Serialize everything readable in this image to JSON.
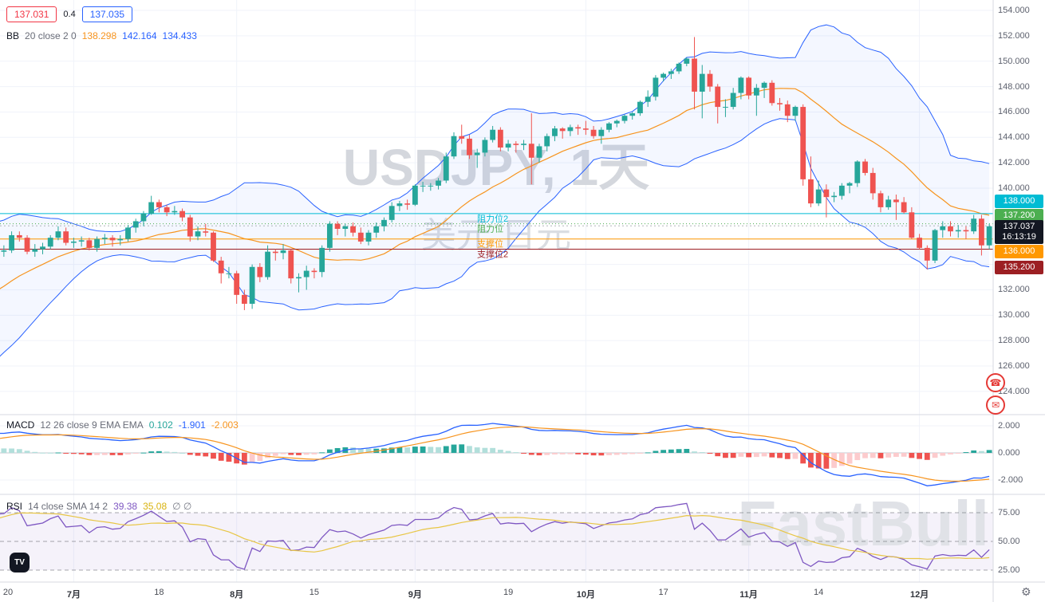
{
  "watermark": {
    "title": "USDJPY, 1天",
    "subtitle": "美元 日元",
    "brand": "FastBull"
  },
  "quote": {
    "bid": "137.031",
    "spread": "0.4",
    "ask": "137.035"
  },
  "legends": {
    "bb": {
      "name": "BB",
      "params": "20 close 2 0",
      "values": [
        {
          "text": "138.298",
          "color": "#f7941e"
        },
        {
          "text": "142.164",
          "color": "#2962ff"
        },
        {
          "text": "134.433",
          "color": "#2962ff"
        }
      ]
    },
    "macd": {
      "name": "MACD",
      "params": "12 26 close 9 EMA EMA",
      "values": [
        {
          "text": "0.102",
          "color": "#26a69a"
        },
        {
          "text": "-1.901",
          "color": "#2962ff"
        },
        {
          "text": "-2.003",
          "color": "#f7941e"
        }
      ]
    },
    "rsi": {
      "name": "RSI",
      "params": "14 close SMA 14 2",
      "values": [
        {
          "text": "39.38",
          "color": "#7e57c2"
        },
        {
          "text": "35.08",
          "color": "#d9b310"
        },
        {
          "text": "∅ ∅",
          "color": "#787b86"
        }
      ]
    }
  },
  "price_axis": {
    "labels": [
      {
        "text": "154.000",
        "price": 154
      },
      {
        "text": "152.000",
        "price": 152
      },
      {
        "text": "150.000",
        "price": 150
      },
      {
        "text": "148.000",
        "price": 148
      },
      {
        "text": "146.000",
        "price": 146
      },
      {
        "text": "144.000",
        "price": 144
      },
      {
        "text": "142.000",
        "price": 142
      },
      {
        "text": "140.000",
        "price": 140
      },
      {
        "text": "132.000",
        "price": 132
      },
      {
        "text": "130.000",
        "price": 130
      },
      {
        "text": "128.000",
        "price": 128
      },
      {
        "text": "126.000",
        "price": 126
      },
      {
        "text": "124.000",
        "price": 124
      }
    ],
    "badges": [
      {
        "name": "resistance2-badge",
        "text": "138.000",
        "price": 138.0,
        "bg": "#00bcd4"
      },
      {
        "name": "resistance-badge",
        "text": "137.200",
        "price": 137.2,
        "bg": "#4caf50"
      },
      {
        "name": "current-price-badge",
        "text": "137.037",
        "price": 137.037,
        "time": "16:13:19",
        "bg": "#131722"
      },
      {
        "name": "support-badge",
        "text": "136.000",
        "price": 136.0,
        "bg": "#ff9800"
      },
      {
        "name": "support2-badge",
        "text": "135.200",
        "price": 135.2,
        "bg": "#9c1f23"
      }
    ],
    "macd_labels": [
      {
        "text": "2.000",
        "v": 2
      },
      {
        "text": "0.000",
        "v": 0
      },
      {
        "text": "-2.000",
        "v": -2
      }
    ],
    "rsi_labels": [
      {
        "text": "75.00",
        "v": 75
      },
      {
        "text": "50.00",
        "v": 50
      },
      {
        "text": "25.00",
        "v": 25
      }
    ]
  },
  "levels": [
    {
      "label": "阻力位2",
      "price": 138.0,
      "color": "#00bcd4",
      "style": "solid"
    },
    {
      "label": "阻力位",
      "price": 137.2,
      "color": "#4caf50",
      "style": "dotted"
    },
    {
      "label": "支撑位",
      "price": 136.0,
      "color": "#ff9800",
      "style": "solid"
    },
    {
      "label": "支撑位2",
      "price": 135.2,
      "color": "#9c1f23",
      "style": "solid"
    }
  ],
  "time_axis": [
    {
      "label": "20",
      "i": 35
    },
    {
      "label": "7月",
      "i": 44,
      "month": true
    },
    {
      "label": "18",
      "i": 55
    },
    {
      "label": "8月",
      "i": 65,
      "month": true
    },
    {
      "label": "15",
      "i": 75
    },
    {
      "label": "9月",
      "i": 88,
      "month": true
    },
    {
      "label": "19",
      "i": 100
    },
    {
      "label": "10月",
      "i": 110,
      "month": true
    },
    {
      "label": "17",
      "i": 120
    },
    {
      "label": "11月",
      "i": 131,
      "month": true
    },
    {
      "label": "14",
      "i": 140
    },
    {
      "label": "12月",
      "i": 153,
      "month": true
    }
  ],
  "icons": {
    "tv_logo": "TV",
    "settings": "⚙",
    "fab_top": "☎",
    "fab_bottom": "✉"
  },
  "colors": {
    "up": "#26a69a",
    "down": "#ef5350",
    "bb": "#2962ff",
    "bb_basis": "#f7941e",
    "bb_fill": "rgba(41,98,255,0.05)",
    "macd": "#2962ff",
    "signal": "#f7941e",
    "hist_up": "#26a69a",
    "hist_up_fade": "#b2dfdb",
    "hist_down": "#ef5350",
    "hist_down_fade": "#fccbcd",
    "rsi": "#7e57c2",
    "rsi_sma": "#e8c645",
    "grid": "#f0f3fa",
    "band_fill": "rgba(126,87,194,0.08)",
    "axis_text": "#5d616e",
    "separator": "#d7dae0"
  },
  "chart_data": {
    "type": "candlestick",
    "symbol": "USDJPY",
    "interval": "1天",
    "title": "USDJPY, 1天 美元 日元",
    "visible_start": 35,
    "price_axis_range": [
      122.2,
      154.8
    ],
    "indicators": {
      "bollinger": {
        "length": 20,
        "mult": 2
      },
      "macd": {
        "fast": 12,
        "slow": 26,
        "signal": 9
      },
      "rsi": {
        "length": 14,
        "sma": 14
      },
      "macd_axis_range": [
        -2.9,
        2.8
      ],
      "rsi_axis_lines": [
        75,
        50,
        25
      ]
    },
    "candles": [
      [
        131.2,
        131.8,
        131.0,
        131.5
      ],
      [
        131.5,
        132.1,
        131.2,
        131.8
      ],
      [
        131.8,
        132.0,
        131.1,
        131.4
      ],
      [
        131.4,
        131.6,
        130.7,
        131.0
      ],
      [
        131.0,
        131.2,
        130.3,
        130.6
      ],
      [
        130.6,
        130.9,
        130.0,
        130.3
      ],
      [
        130.3,
        130.6,
        129.7,
        130.0
      ],
      [
        130.0,
        130.3,
        129.4,
        129.7
      ],
      [
        129.7,
        130.0,
        129.1,
        129.4
      ],
      [
        129.4,
        129.7,
        128.8,
        129.1
      ],
      [
        129.1,
        129.4,
        128.5,
        128.8
      ],
      [
        128.8,
        129.1,
        128.2,
        128.5
      ],
      [
        128.5,
        128.8,
        128.0,
        128.3
      ],
      [
        128.3,
        128.6,
        127.7,
        128.0
      ],
      [
        128.0,
        128.3,
        127.5,
        127.8
      ],
      [
        127.8,
        128.1,
        127.3,
        127.6
      ],
      [
        127.6,
        128.2,
        127.4,
        127.9
      ],
      [
        127.9,
        128.6,
        127.7,
        128.3
      ],
      [
        128.3,
        129.0,
        128.1,
        128.7
      ],
      [
        128.7,
        129.4,
        128.5,
        129.1
      ],
      [
        129.1,
        129.9,
        128.9,
        129.6
      ],
      [
        129.6,
        130.4,
        129.4,
        130.1
      ],
      [
        130.1,
        130.9,
        129.9,
        130.6
      ],
      [
        130.6,
        131.4,
        130.4,
        131.1
      ],
      [
        131.1,
        132.0,
        130.9,
        131.7
      ],
      [
        131.7,
        132.6,
        131.5,
        132.3
      ],
      [
        132.3,
        133.2,
        132.1,
        132.9
      ],
      [
        132.9,
        133.8,
        132.7,
        133.5
      ],
      [
        133.5,
        134.4,
        133.3,
        134.1
      ],
      [
        134.1,
        134.9,
        133.9,
        134.6
      ],
      [
        134.6,
        135.3,
        134.4,
        135.0
      ],
      [
        135.0,
        135.6,
        134.8,
        135.3
      ],
      [
        135.3,
        135.8,
        135.0,
        135.5
      ],
      [
        135.5,
        135.7,
        134.9,
        135.2
      ],
      [
        135.2,
        135.4,
        134.6,
        135.0
      ],
      [
        135.0,
        135.5,
        134.6,
        135.1
      ],
      [
        135.1,
        136.6,
        134.9,
        136.3
      ],
      [
        136.3,
        136.6,
        135.8,
        136.1
      ],
      [
        136.1,
        136.3,
        134.8,
        135.0
      ],
      [
        135.0,
        135.6,
        134.6,
        135.2
      ],
      [
        135.2,
        135.7,
        134.8,
        135.4
      ],
      [
        135.4,
        136.3,
        135.2,
        136.1
      ],
      [
        136.1,
        137.0,
        135.9,
        136.6
      ],
      [
        136.6,
        136.9,
        135.5,
        135.7
      ],
      [
        135.7,
        136.1,
        135.3,
        135.8
      ],
      [
        135.8,
        136.2,
        135.4,
        135.9
      ],
      [
        135.9,
        136.1,
        135.1,
        135.3
      ],
      [
        135.3,
        136.2,
        135.0,
        136.0
      ],
      [
        136.0,
        136.4,
        135.6,
        136.1
      ],
      [
        136.1,
        136.3,
        135.4,
        135.9
      ],
      [
        135.9,
        136.3,
        135.5,
        136.0
      ],
      [
        136.0,
        137.1,
        135.8,
        136.9
      ],
      [
        136.9,
        137.6,
        136.5,
        137.4
      ],
      [
        137.4,
        138.2,
        137.0,
        138.0
      ],
      [
        138.0,
        139.4,
        137.9,
        138.9
      ],
      [
        138.9,
        139.1,
        138.1,
        138.5
      ],
      [
        138.5,
        138.7,
        137.8,
        138.1
      ],
      [
        138.1,
        138.6,
        137.9,
        138.2
      ],
      [
        138.2,
        138.4,
        137.4,
        137.7
      ],
      [
        137.7,
        137.9,
        135.8,
        136.2
      ],
      [
        136.2,
        137.0,
        135.9,
        136.6
      ],
      [
        136.6,
        137.2,
        136.2,
        136.5
      ],
      [
        136.5,
        136.6,
        134.2,
        134.3
      ],
      [
        134.3,
        134.6,
        132.5,
        133.3
      ],
      [
        133.3,
        133.8,
        132.9,
        133.3
      ],
      [
        133.3,
        133.5,
        130.9,
        131.6
      ],
      [
        131.6,
        132.0,
        130.4,
        130.9
      ],
      [
        130.9,
        134.0,
        130.5,
        133.8
      ],
      [
        133.8,
        134.1,
        132.6,
        133.0
      ],
      [
        133.0,
        135.5,
        132.8,
        135.0
      ],
      [
        135.0,
        135.2,
        134.3,
        134.9
      ],
      [
        134.9,
        135.6,
        134.4,
        135.1
      ],
      [
        135.1,
        135.2,
        132.5,
        132.9
      ],
      [
        132.9,
        133.3,
        131.8,
        133.0
      ],
      [
        133.0,
        133.9,
        132.0,
        133.5
      ],
      [
        133.5,
        133.7,
        132.9,
        133.4
      ],
      [
        133.4,
        135.5,
        133.0,
        135.3
      ],
      [
        135.3,
        137.4,
        135.0,
        137.2
      ],
      [
        137.2,
        137.4,
        136.3,
        136.8
      ],
      [
        136.8,
        137.2,
        136.2,
        137.0
      ],
      [
        137.0,
        137.3,
        136.2,
        136.5
      ],
      [
        136.5,
        136.9,
        135.6,
        135.8
      ],
      [
        135.8,
        136.7,
        135.5,
        136.5
      ],
      [
        136.5,
        137.3,
        136.1,
        137.0
      ],
      [
        137.0,
        137.7,
        136.6,
        137.5
      ],
      [
        137.5,
        138.9,
        137.3,
        138.6
      ],
      [
        138.6,
        139.0,
        138.2,
        138.8
      ],
      [
        138.8,
        139.1,
        138.3,
        138.7
      ],
      [
        138.7,
        140.3,
        138.6,
        140.2
      ],
      [
        140.2,
        140.5,
        139.7,
        140.2
      ],
      [
        140.2,
        140.4,
        139.8,
        140.2
      ],
      [
        140.2,
        140.8,
        139.9,
        140.6
      ],
      [
        140.6,
        142.8,
        140.4,
        142.5
      ],
      [
        142.5,
        144.4,
        142.3,
        144.1
      ],
      [
        144.1,
        145.0,
        143.5,
        143.9
      ],
      [
        143.9,
        144.2,
        142.3,
        142.6
      ],
      [
        142.6,
        143.1,
        141.6,
        142.8
      ],
      [
        142.8,
        144.0,
        142.5,
        143.8
      ],
      [
        143.8,
        144.9,
        143.6,
        144.6
      ],
      [
        144.6,
        144.8,
        142.9,
        143.2
      ],
      [
        143.2,
        143.8,
        142.9,
        143.5
      ],
      [
        143.5,
        143.7,
        142.8,
        143.4
      ],
      [
        143.4,
        143.8,
        143.0,
        143.5
      ],
      [
        143.5,
        145.9,
        140.3,
        142.4
      ],
      [
        142.4,
        143.5,
        142.0,
        143.3
      ],
      [
        143.3,
        144.3,
        142.9,
        144.1
      ],
      [
        144.1,
        144.9,
        143.7,
        144.7
      ],
      [
        144.7,
        144.8,
        143.9,
        144.5
      ],
      [
        144.5,
        145.0,
        144.1,
        144.8
      ],
      [
        144.8,
        145.0,
        144.2,
        144.7
      ],
      [
        144.7,
        145.3,
        144.2,
        144.6
      ],
      [
        144.6,
        144.9,
        143.9,
        144.1
      ],
      [
        144.1,
        144.8,
        143.5,
        144.6
      ],
      [
        144.6,
        145.2,
        144.4,
        145.1
      ],
      [
        145.1,
        145.4,
        144.8,
        145.3
      ],
      [
        145.3,
        145.8,
        145.1,
        145.7
      ],
      [
        145.7,
        146.0,
        145.4,
        145.9
      ],
      [
        145.9,
        146.9,
        145.7,
        146.8
      ],
      [
        146.8,
        147.7,
        146.4,
        147.2
      ],
      [
        147.2,
        148.9,
        146.9,
        148.7
      ],
      [
        148.7,
        149.1,
        148.4,
        149.0
      ],
      [
        149.0,
        149.4,
        148.6,
        149.2
      ],
      [
        149.2,
        149.9,
        149.0,
        149.8
      ],
      [
        149.8,
        150.3,
        149.6,
        150.2
      ],
      [
        150.2,
        151.9,
        146.2,
        147.6
      ],
      [
        147.6,
        149.7,
        145.5,
        149.0
      ],
      [
        149.0,
        149.3,
        147.6,
        148.0
      ],
      [
        148.0,
        148.2,
        145.1,
        146.4
      ],
      [
        146.4,
        147.0,
        145.6,
        146.4
      ],
      [
        146.4,
        147.9,
        146.2,
        147.5
      ],
      [
        147.5,
        148.8,
        147.0,
        148.7
      ],
      [
        148.7,
        148.8,
        147.0,
        147.3
      ],
      [
        147.3,
        148.2,
        145.7,
        147.9
      ],
      [
        147.9,
        148.4,
        147.1,
        148.3
      ],
      [
        148.3,
        148.5,
        146.5,
        146.7
      ],
      [
        146.7,
        147.1,
        146.1,
        146.6
      ],
      [
        146.6,
        146.9,
        145.2,
        145.7
      ],
      [
        145.7,
        146.5,
        145.3,
        146.4
      ],
      [
        146.4,
        146.6,
        140.2,
        140.7
      ],
      [
        140.7,
        142.5,
        138.5,
        138.8
      ],
      [
        138.8,
        140.6,
        138.6,
        139.9
      ],
      [
        139.9,
        140.3,
        137.7,
        139.3
      ],
      [
        139.3,
        139.7,
        138.9,
        139.4
      ],
      [
        139.4,
        140.4,
        139.1,
        140.2
      ],
      [
        140.2,
        140.5,
        139.6,
        140.4
      ],
      [
        140.4,
        142.2,
        140.1,
        142.1
      ],
      [
        142.1,
        142.3,
        141.0,
        141.2
      ],
      [
        141.2,
        141.6,
        139.1,
        139.6
      ],
      [
        139.6,
        139.8,
        138.1,
        138.5
      ],
      [
        138.5,
        139.4,
        138.3,
        139.1
      ],
      [
        139.1,
        139.5,
        137.5,
        138.9
      ],
      [
        138.9,
        139.3,
        138.0,
        138.1
      ],
      [
        138.1,
        138.5,
        136.0,
        136.1
      ],
      [
        136.1,
        136.4,
        135.2,
        135.3
      ],
      [
        135.3,
        135.5,
        133.6,
        134.3
      ],
      [
        134.3,
        136.8,
        134.1,
        136.7
      ],
      [
        136.7,
        137.4,
        136.1,
        137.0
      ],
      [
        137.0,
        137.4,
        136.2,
        136.6
      ],
      [
        136.6,
        137.1,
        136.1,
        136.7
      ],
      [
        136.7,
        137.0,
        136.0,
        136.6
      ],
      [
        136.6,
        137.9,
        136.4,
        137.6
      ],
      [
        137.6,
        137.9,
        134.7,
        135.5
      ],
      [
        135.5,
        137.2,
        135.2,
        137.0
      ]
    ]
  }
}
